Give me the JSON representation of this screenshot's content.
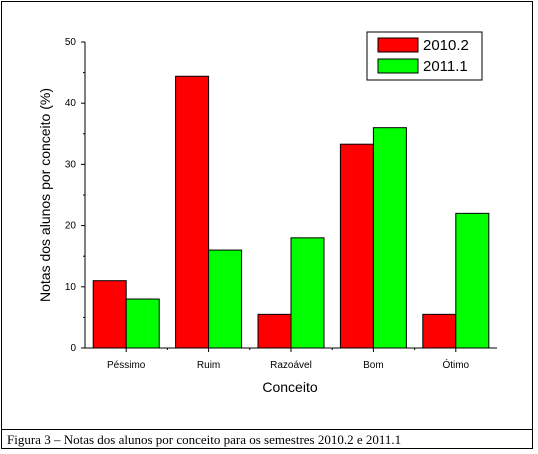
{
  "chart_data": {
    "type": "bar",
    "xlabel": "Conceito",
    "ylabel": "Notas dos alunos por conceito (%)",
    "ylim": [
      0,
      50
    ],
    "yticks": [
      0,
      10,
      20,
      30,
      40,
      50
    ],
    "categories": [
      "Péssimo",
      "Ruim",
      "Razoável",
      "Bom",
      "Ótimo"
    ],
    "series": [
      {
        "name": "2010.2",
        "color": "#ff0000",
        "values": [
          11,
          44.4,
          5.5,
          33.3,
          5.5
        ]
      },
      {
        "name": "2011.1",
        "color": "#00ff00",
        "values": [
          8,
          16,
          18,
          36,
          22
        ]
      }
    ],
    "legend_position": "top-right",
    "grid": false
  },
  "caption": "Figura 3 – Notas dos alunos por conceito para os semestres 2010.2 e 2011.1"
}
